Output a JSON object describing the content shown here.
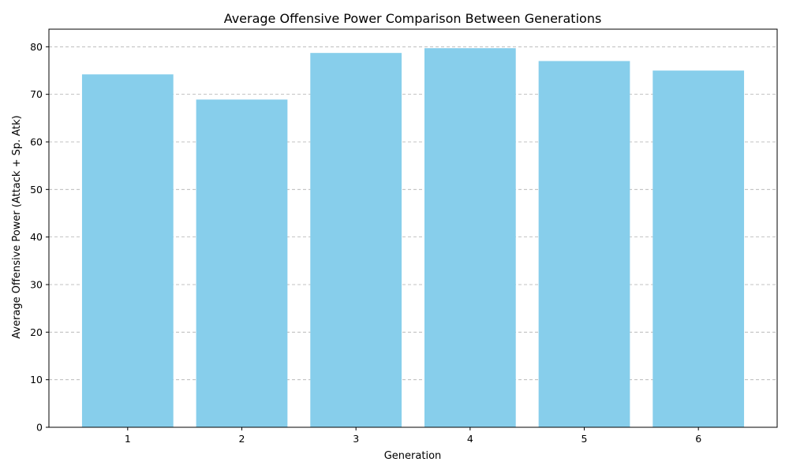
{
  "chart_data": {
    "type": "bar",
    "title": "Average Offensive Power Comparison Between Generations",
    "xlabel": "Generation",
    "ylabel": "Average Offensive Power (Attack + Sp. Atk)",
    "categories": [
      "1",
      "2",
      "3",
      "4",
      "5",
      "6"
    ],
    "values": [
      74.2,
      68.9,
      78.7,
      79.7,
      77.0,
      75.0
    ],
    "ylim": [
      0,
      83.7
    ],
    "yticks": [
      0,
      10,
      20,
      30,
      40,
      50,
      60,
      70,
      80
    ],
    "grid": "y-dashed",
    "bar_color": "#87ceeb"
  }
}
